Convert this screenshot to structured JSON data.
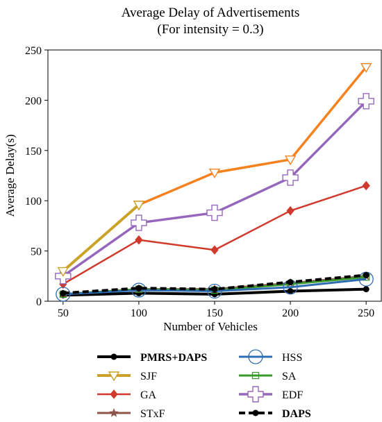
{
  "chart_data": {
    "type": "line",
    "title": "Average Delay of Advertisements",
    "subtitle": "(For intensity = 0.3)",
    "xlabel": "Number of Vehicles",
    "ylabel": "Average Delay(s)",
    "x": [
      50,
      100,
      150,
      200,
      250
    ],
    "x_ticks": [
      "50",
      "100",
      "150",
      "200",
      "250"
    ],
    "y_ticks": [
      "0",
      "50",
      "100",
      "150",
      "200",
      "250"
    ],
    "xlim": [
      40,
      260
    ],
    "ylim": [
      0,
      250
    ],
    "grid": false,
    "legend_placement": "below plot, two columns",
    "series": [
      {
        "name": "PMRS+DAPS",
        "bold": true,
        "color": "#000000",
        "marker": "circle",
        "dash": "solid",
        "width": 4,
        "values": [
          6,
          8,
          7,
          10,
          12
        ]
      },
      {
        "name": "HSS",
        "color": "#2f6db3",
        "marker": "big-circle",
        "dash": "solid",
        "width": 3,
        "values": [
          7,
          11,
          10,
          14,
          22
        ]
      },
      {
        "name": "SJF",
        "color": "#c9a227",
        "marker": "down-triangle",
        "dash": "solid",
        "width": 4,
        "values": [
          30,
          96,
          null,
          null,
          null
        ]
      },
      {
        "name": "SA",
        "color": "#3a9a2c",
        "marker": "square",
        "dash": "solid",
        "width": 3,
        "values": [
          7,
          12,
          11,
          17,
          24
        ]
      },
      {
        "name": "GA",
        "color": "#d03a2c",
        "marker": "diamond",
        "dash": "solid",
        "width": 2.5,
        "values": [
          17,
          61,
          51,
          90,
          115
        ]
      },
      {
        "name": "EDF",
        "color": "#9467bd",
        "marker": "plus",
        "dash": "solid",
        "width": 3.5,
        "values": [
          25,
          78,
          88,
          123,
          199
        ]
      },
      {
        "name": "STxF",
        "color": "#8c564b",
        "marker": "star",
        "dash": "solid",
        "width": 3,
        "values": [
          7,
          12,
          12,
          18,
          25
        ]
      },
      {
        "name": "DAPS",
        "bold": true,
        "color": "#000000",
        "marker": "circle",
        "dash": "dashed",
        "width": 4,
        "values": [
          8,
          13,
          12,
          19,
          26
        ]
      }
    ],
    "extra_lines": [
      {
        "color": "#f5821f",
        "marker": "down-triangle",
        "width": 3.5,
        "values": [
          null,
          96,
          128,
          141,
          233
        ]
      }
    ]
  }
}
